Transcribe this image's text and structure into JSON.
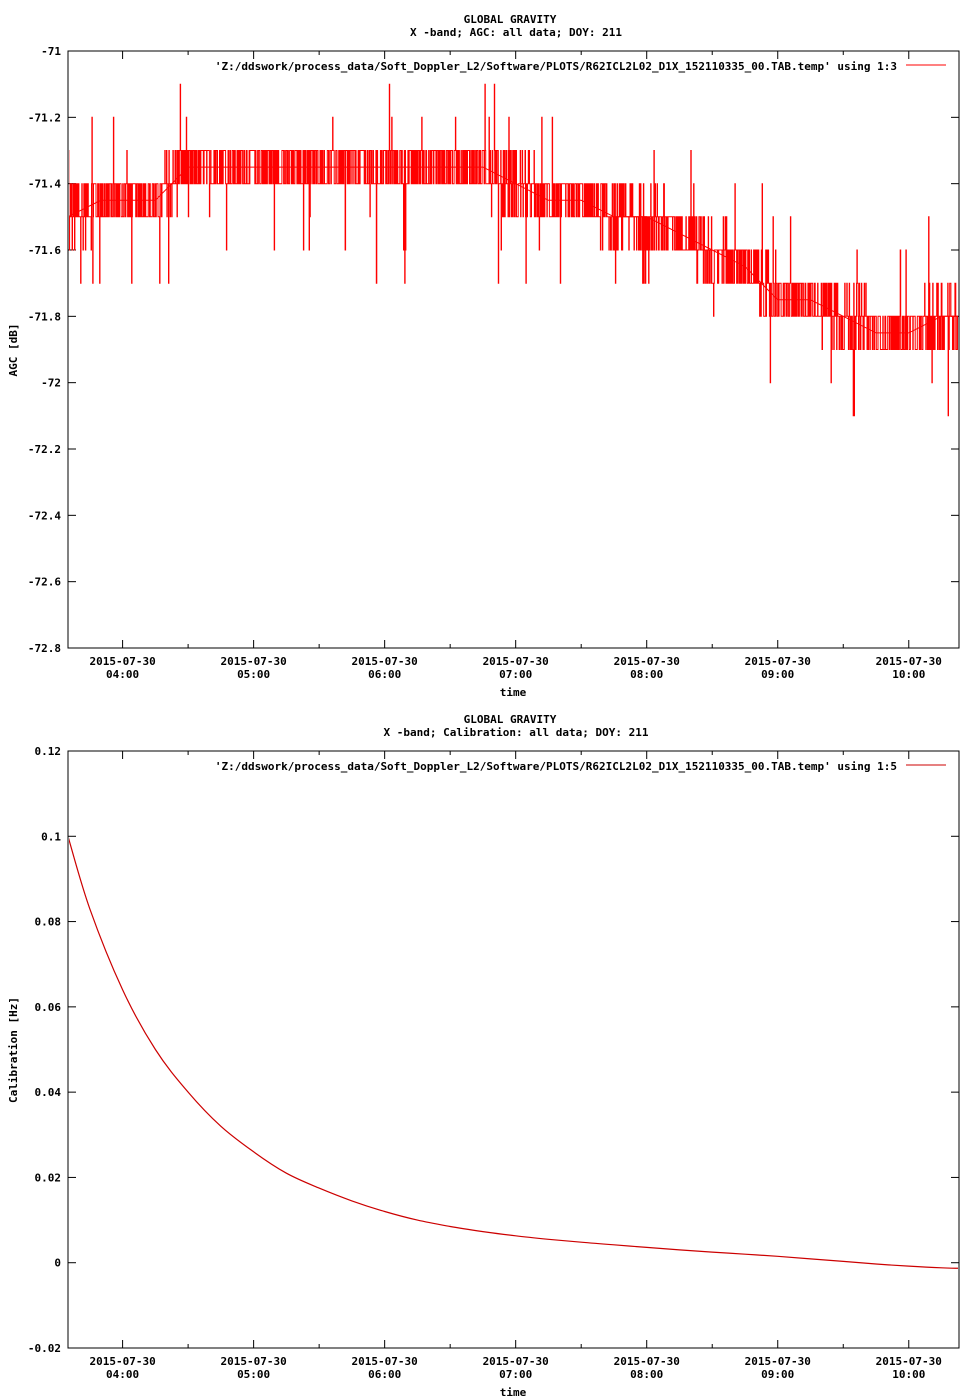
{
  "charts": [
    {
      "title_line1": "GLOBAL GRAVITY",
      "title_line2": "X -band; AGC: all data; DOY: 211",
      "legend": "'Z:/ddswork/process_data/Soft_Doppler_L2/Software/PLOTS/R62ICL2L02_D1X_152110335_00.TAB.temp' using 1:3",
      "ylabel": "AGC [dB]",
      "xlabel": "time",
      "yticks": [
        "-71",
        "-71.2",
        "-71.4",
        "-71.6",
        "-71.8",
        "-72",
        "-72.2",
        "-72.4",
        "-72.6",
        "-72.8"
      ],
      "xticks_date": [
        "2015-07-30",
        "2015-07-30",
        "2015-07-30",
        "2015-07-30",
        "2015-07-30",
        "2015-07-30",
        "2015-07-30"
      ],
      "xticks_time": [
        "04:00",
        "05:00",
        "06:00",
        "07:00",
        "08:00",
        "09:00",
        "10:00"
      ]
    },
    {
      "title_line1": "GLOBAL GRAVITY",
      "title_line2": "X -band; Calibration: all data; DOY: 211",
      "legend": "'Z:/ddswork/process_data/Soft_Doppler_L2/Software/PLOTS/R62ICL2L02_D1X_152110335_00.TAB.temp' using 1:5",
      "ylabel": "Calibration [Hz]",
      "xlabel": "time",
      "yticks": [
        "0.12",
        "0.1",
        "0.08",
        "0.06",
        "0.04",
        "0.02",
        "0",
        "-0.02"
      ],
      "xticks_date": [
        "2015-07-30",
        "2015-07-30",
        "2015-07-30",
        "2015-07-30",
        "2015-07-30",
        "2015-07-30",
        "2015-07-30"
      ],
      "xticks_time": [
        "04:00",
        "05:00",
        "06:00",
        "07:00",
        "08:00",
        "09:00",
        "10:00"
      ]
    }
  ],
  "colors": {
    "series": "#ff0000",
    "series2": "#cc0000",
    "axis": "#000000"
  },
  "chart_data": [
    {
      "type": "line",
      "title": "GLOBAL GRAVITY — X -band; AGC: all data; DOY: 211",
      "xlabel": "time",
      "ylabel": "AGC [dB]",
      "ylim": [
        -72.8,
        -71
      ],
      "xlim": [
        "2015-07-30 03:35",
        "2015-07-30 10:23"
      ],
      "grid": false,
      "legend_position": "top-right",
      "series": [
        {
          "name": "'Z:/ddswork/process_data/Soft_Doppler_L2/Software/PLOTS/R62ICL2L02_D1X_152110335_00.TAB.temp' using 1:3",
          "x": [
            "03:35",
            "03:50",
            "04:00",
            "04:15",
            "04:30",
            "04:45",
            "05:00",
            "05:15",
            "05:30",
            "05:45",
            "06:00",
            "06:15",
            "06:30",
            "06:45",
            "07:00",
            "07:15",
            "07:30",
            "07:45",
            "08:00",
            "08:15",
            "08:30",
            "08:45",
            "09:00",
            "09:15",
            "09:30",
            "09:45",
            "10:00",
            "10:15",
            "10:23"
          ],
          "y": [
            -71.5,
            -71.45,
            -71.45,
            -71.45,
            -71.35,
            -71.35,
            -71.35,
            -71.35,
            -71.35,
            -71.35,
            -71.35,
            -71.35,
            -71.35,
            -71.35,
            -71.4,
            -71.45,
            -71.45,
            -71.5,
            -71.5,
            -71.55,
            -71.6,
            -71.65,
            -71.75,
            -71.75,
            -71.8,
            -71.85,
            -71.85,
            -71.8,
            -71.8
          ]
        }
      ]
    },
    {
      "type": "line",
      "title": "GLOBAL GRAVITY — X -band; Calibration: all data; DOY: 211",
      "xlabel": "time",
      "ylabel": "Calibration [Hz]",
      "ylim": [
        -0.02,
        0.12
      ],
      "xlim": [
        "2015-07-30 03:35",
        "2015-07-30 10:23"
      ],
      "grid": false,
      "legend_position": "top-right",
      "series": [
        {
          "name": "'Z:/ddswork/process_data/Soft_Doppler_L2/Software/PLOTS/R62ICL2L02_D1X_152110335_00.TAB.temp' using 1:5",
          "x": [
            "03:35",
            "03:45",
            "04:00",
            "04:15",
            "04:30",
            "04:45",
            "05:00",
            "05:15",
            "05:30",
            "05:45",
            "06:00",
            "06:15",
            "06:30",
            "06:45",
            "07:00",
            "07:15",
            "07:30",
            "07:45",
            "08:00",
            "08:15",
            "08:30",
            "08:45",
            "09:00",
            "09:15",
            "09:30",
            "09:45",
            "10:00",
            "10:15",
            "10:23"
          ],
          "y": [
            0.1,
            0.083,
            0.064,
            0.05,
            0.04,
            0.032,
            0.026,
            0.021,
            0.0175,
            0.0145,
            0.012,
            0.01,
            0.0085,
            0.0073,
            0.0063,
            0.0055,
            0.0048,
            0.0042,
            0.0036,
            0.003,
            0.0025,
            0.002,
            0.0015,
            0.0009,
            0.0003,
            -0.0003,
            -0.0008,
            -0.0012,
            -0.0013
          ]
        }
      ]
    }
  ]
}
